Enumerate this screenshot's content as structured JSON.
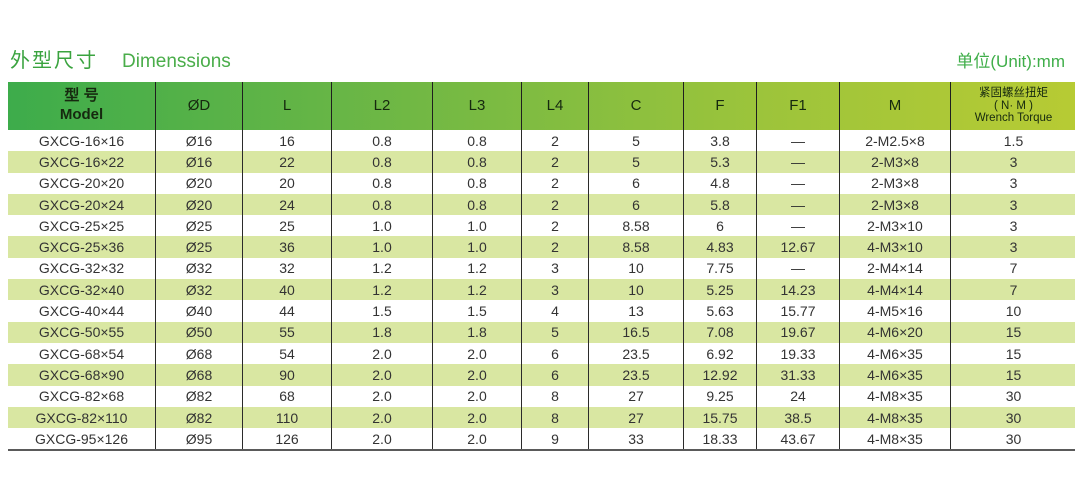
{
  "header": {
    "title_zh": "外型尺寸",
    "title_en": "Dimenssions",
    "unit_label": "单位(Unit):mm"
  },
  "colors": {
    "title_green": "#3aa33f",
    "header_gradient_left": "#3dac4b",
    "header_gradient_right": "#b7cb34",
    "stripe": "#d9e7a2",
    "column_border": "#2b2b2b",
    "bottom_border": "#5a5a5a",
    "cell_text": "#333333"
  },
  "table": {
    "columns": [
      {
        "lines": [
          "型 号",
          "Model"
        ]
      },
      {
        "lines": [
          "ØD"
        ]
      },
      {
        "lines": [
          "L"
        ]
      },
      {
        "lines": [
          "L2"
        ]
      },
      {
        "lines": [
          "L3"
        ]
      },
      {
        "lines": [
          "L4"
        ]
      },
      {
        "lines": [
          "C"
        ]
      },
      {
        "lines": [
          "F"
        ]
      },
      {
        "lines": [
          "F1"
        ]
      },
      {
        "lines": [
          "M"
        ]
      },
      {
        "lines": [
          "紧固螺丝扭矩",
          "( N· M )",
          "Wrench Torque"
        ],
        "small": true
      }
    ],
    "rows": [
      [
        "GXCG-16×16",
        "Ø16",
        "16",
        "0.8",
        "0.8",
        "2",
        "5",
        "3.8",
        "—",
        "2-M2.5×8",
        "1.5"
      ],
      [
        "GXCG-16×22",
        "Ø16",
        "22",
        "0.8",
        "0.8",
        "2",
        "5",
        "5.3",
        "—",
        "2-M3×8",
        "3"
      ],
      [
        "GXCG-20×20",
        "Ø20",
        "20",
        "0.8",
        "0.8",
        "2",
        "6",
        "4.8",
        "—",
        "2-M3×8",
        "3"
      ],
      [
        "GXCG-20×24",
        "Ø20",
        "24",
        "0.8",
        "0.8",
        "2",
        "6",
        "5.8",
        "—",
        "2-M3×8",
        "3"
      ],
      [
        "GXCG-25×25",
        "Ø25",
        "25",
        "1.0",
        "1.0",
        "2",
        "8.58",
        "6",
        "—",
        "2-M3×10",
        "3"
      ],
      [
        "GXCG-25×36",
        "Ø25",
        "36",
        "1.0",
        "1.0",
        "2",
        "8.58",
        "4.83",
        "12.67",
        "4-M3×10",
        "3"
      ],
      [
        "GXCG-32×32",
        "Ø32",
        "32",
        "1.2",
        "1.2",
        "3",
        "10",
        "7.75",
        "—",
        "2-M4×14",
        "7"
      ],
      [
        "GXCG-32×40",
        "Ø32",
        "40",
        "1.2",
        "1.2",
        "3",
        "10",
        "5.25",
        "14.23",
        "4-M4×14",
        "7"
      ],
      [
        "GXCG-40×44",
        "Ø40",
        "44",
        "1.5",
        "1.5",
        "4",
        "13",
        "5.63",
        "15.77",
        "4-M5×16",
        "10"
      ],
      [
        "GXCG-50×55",
        "Ø50",
        "55",
        "1.8",
        "1.8",
        "5",
        "16.5",
        "7.08",
        "19.67",
        "4-M6×20",
        "15"
      ],
      [
        "GXCG-68×54",
        "Ø68",
        "54",
        "2.0",
        "2.0",
        "6",
        "23.5",
        "6.92",
        "19.33",
        "4-M6×35",
        "15"
      ],
      [
        "GXCG-68×90",
        "Ø68",
        "90",
        "2.0",
        "2.0",
        "6",
        "23.5",
        "12.92",
        "31.33",
        "4-M6×35",
        "15"
      ],
      [
        "GXCG-82×68",
        "Ø82",
        "68",
        "2.0",
        "2.0",
        "8",
        "27",
        "9.25",
        "24",
        "4-M8×35",
        "30"
      ],
      [
        "GXCG-82×110",
        "Ø82",
        "110",
        "2.0",
        "2.0",
        "8",
        "27",
        "15.75",
        "38.5",
        "4-M8×35",
        "30"
      ],
      [
        "GXCG-95×126",
        "Ø95",
        "126",
        "2.0",
        "2.0",
        "9",
        "33",
        "18.33",
        "43.67",
        "4-M8×35",
        "30"
      ]
    ]
  }
}
